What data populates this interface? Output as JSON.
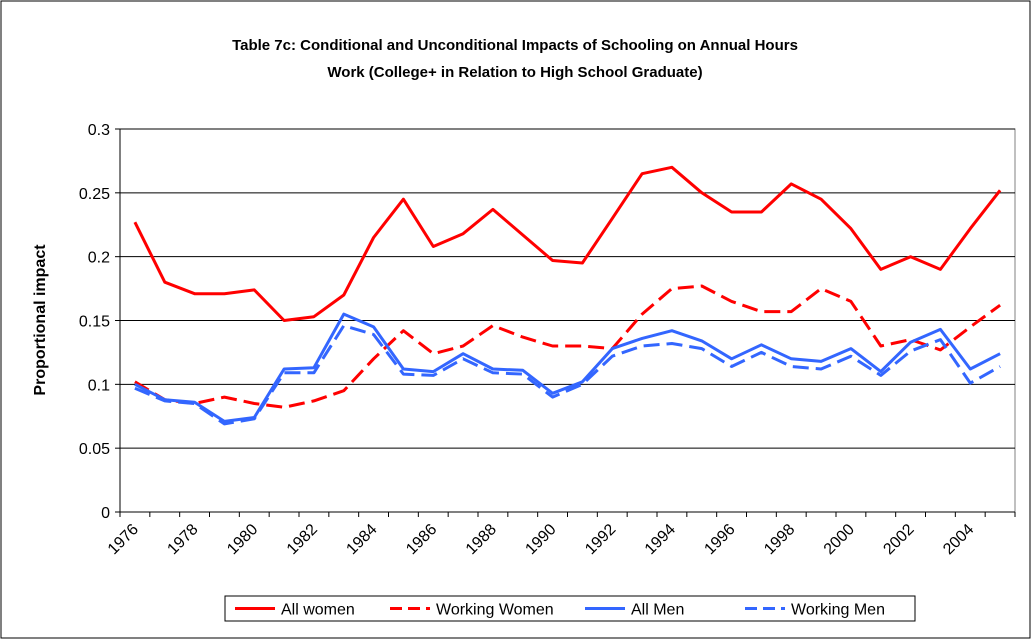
{
  "chart_data": {
    "type": "line",
    "title": "Table 7c: Conditional and Unconditional Impacts of Schooling on Annual Hours",
    "subtitle": "Work (College+ in Relation to High School Graduate)",
    "y_label": "Proportional impact",
    "categories": [
      "1976",
      null,
      "1978",
      null,
      "1980",
      null,
      "1982",
      null,
      "1984",
      null,
      "1986",
      null,
      "1988",
      null,
      "1990",
      null,
      "1992",
      null,
      "1994",
      null,
      "1996",
      null,
      "1998",
      null,
      "2000",
      null,
      "2002",
      null,
      "2004",
      null
    ],
    "series": [
      {
        "name": "All women",
        "color": "#ff0000",
        "dash": false,
        "values": [
          0.227,
          0.18,
          0.171,
          0.171,
          0.174,
          0.15,
          0.153,
          0.17,
          0.215,
          0.245,
          0.208,
          0.218,
          0.237,
          0.217,
          0.197,
          0.195,
          0.23,
          0.265,
          0.27,
          0.25,
          0.235,
          0.235,
          0.257,
          0.245,
          0.222,
          0.19,
          0.2,
          0.19,
          0.222,
          0.252
        ]
      },
      {
        "name": "Working Women",
        "color": "#ff0000",
        "dash": true,
        "values": [
          0.102,
          0.088,
          0.085,
          0.09,
          0.085,
          0.082,
          0.087,
          0.095,
          0.12,
          0.142,
          0.124,
          0.13,
          0.146,
          0.137,
          0.13,
          0.13,
          0.128,
          0.155,
          0.175,
          0.177,
          0.165,
          0.157,
          0.157,
          0.175,
          0.165,
          0.13,
          0.135,
          0.127,
          0.145,
          0.162
        ]
      },
      {
        "name": "All Men",
        "color": "#3366ff",
        "dash": false,
        "values": [
          0.1,
          0.088,
          0.086,
          0.071,
          0.074,
          0.112,
          0.113,
          0.155,
          0.145,
          0.112,
          0.11,
          0.124,
          0.112,
          0.111,
          0.093,
          0.102,
          0.128,
          0.136,
          0.142,
          0.134,
          0.12,
          0.131,
          0.12,
          0.118,
          0.128,
          0.11,
          0.133,
          0.143,
          0.112,
          0.124
        ]
      },
      {
        "name": "Working Men",
        "color": "#3366ff",
        "dash": true,
        "values": [
          0.097,
          0.087,
          0.085,
          0.069,
          0.073,
          0.109,
          0.109,
          0.146,
          0.139,
          0.108,
          0.107,
          0.12,
          0.109,
          0.108,
          0.09,
          0.1,
          0.122,
          0.13,
          0.132,
          0.128,
          0.114,
          0.125,
          0.114,
          0.112,
          0.122,
          0.107,
          0.126,
          0.135,
          0.101,
          0.114
        ]
      }
    ],
    "ylim": [
      0,
      0.3
    ],
    "yticks": [
      0,
      0.05,
      0.1,
      0.15,
      0.2,
      0.25,
      0.3
    ],
    "grid": true,
    "legend": "bottom"
  }
}
